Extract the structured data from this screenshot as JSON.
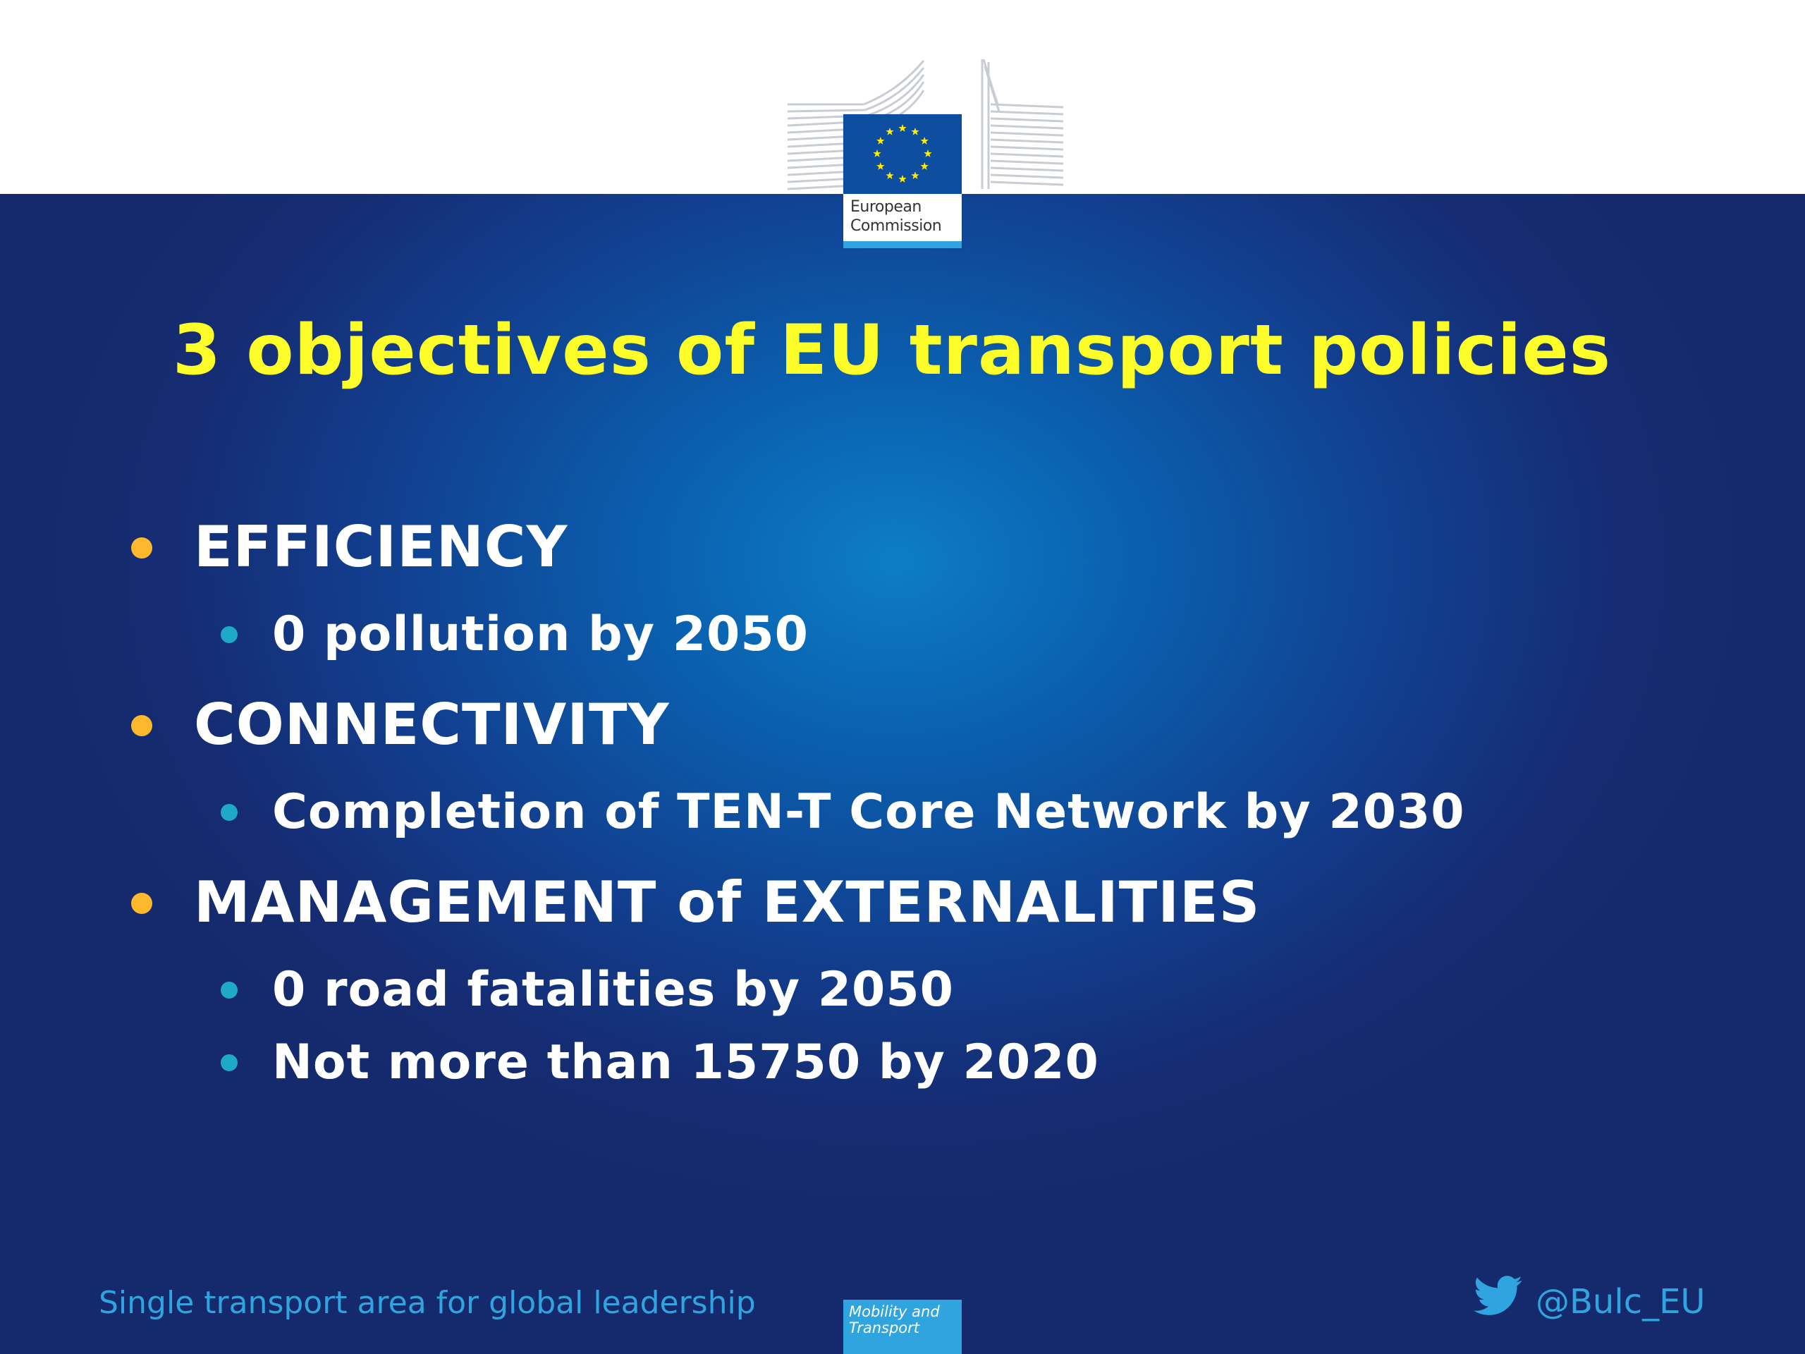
{
  "logo": {
    "org_line1": "European",
    "org_line2": "Commission",
    "icon": "eu-flag-icon"
  },
  "slide": {
    "title": "3 objectives of EU transport policies",
    "bullets": [
      {
        "text": "EFFICIENCY",
        "sub": [
          "0 pollution by 2050"
        ]
      },
      {
        "text": "CONNECTIVITY",
        "sub": [
          "Completion of TEN-T Core Network by 2030"
        ]
      },
      {
        "text": "MANAGEMENT of EXTERNALITIES",
        "sub": [
          "0 road fatalities by 2050",
          "Not more than 15750 by 2020"
        ]
      }
    ]
  },
  "footer": {
    "tagline": "Single transport area for global leadership",
    "dg_line1": "Mobility and",
    "dg_line2": "Transport",
    "twitter_icon": "twitter-bird-icon",
    "handle": "@Bulc_EU"
  },
  "colors": {
    "title": "#fdfd2a",
    "bullet_level1": "#fdb92b",
    "bullet_level2": "#1fa9c9",
    "accent": "#2fa4de",
    "background_dark": "#152a6c"
  }
}
